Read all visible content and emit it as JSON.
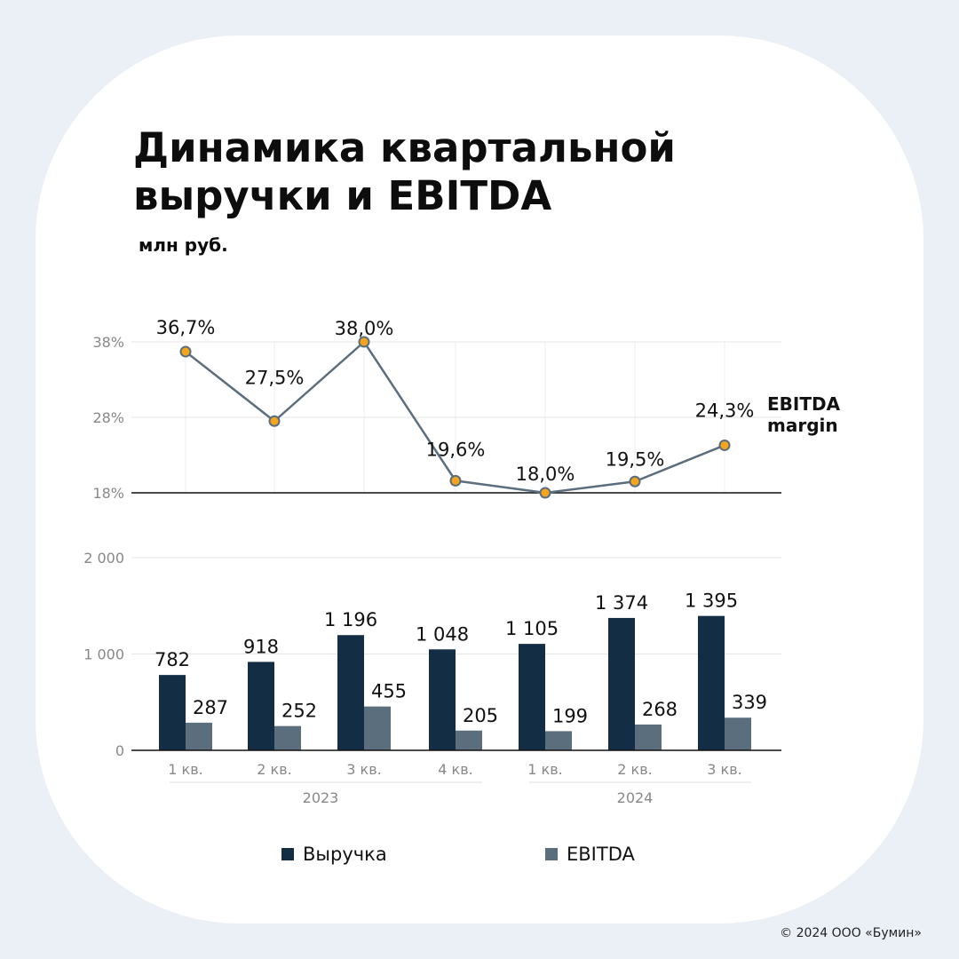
{
  "title": "Динамика квартальной выручки и EBITDA",
  "subtitle": "млн руб.",
  "copyright": "© 2024 ООО «Бумин»",
  "colors": {
    "revenue": "#132d45",
    "ebitda": "#5b6e7e",
    "margin_line": "#5b6e7e",
    "margin_marker": "#f5a51b",
    "background": "#ebf0f7",
    "card": "#ffffff"
  },
  "legend": {
    "revenue": "Выручка",
    "ebitda": "EBITDA"
  },
  "chart_data": [
    {
      "type": "line",
      "series_label": "EBITDA margin",
      "categories": [
        "1 кв. 2023",
        "2 кв. 2023",
        "3 кв. 2023",
        "4 кв. 2023",
        "1 кв. 2024",
        "2 кв. 2024",
        "3 кв. 2024"
      ],
      "values": [
        36.7,
        27.5,
        38.0,
        19.6,
        18.0,
        19.5,
        24.3
      ],
      "value_labels": [
        "36,7%",
        "27,5%",
        "38,0%",
        "19,6%",
        "18,0%",
        "19,5%",
        "24,3%"
      ],
      "yticks": [
        18,
        28,
        38
      ],
      "ytick_labels": [
        "18%",
        "28%",
        "38%"
      ],
      "ylim": [
        18,
        38
      ],
      "grid": true
    },
    {
      "type": "bar",
      "quarter_labels": [
        "1 кв.",
        "2 кв.",
        "3 кв.",
        "4 кв.",
        "1 кв.",
        "2 кв.",
        "3 кв."
      ],
      "year_groups": [
        {
          "label": "2023",
          "count": 4
        },
        {
          "label": "2024",
          "count": 3
        }
      ],
      "series": [
        {
          "name": "Выручка",
          "values": [
            782,
            918,
            1196,
            1048,
            1105,
            1374,
            1395
          ],
          "labels": [
            "782",
            "918",
            "1 196",
            "1 048",
            "1 105",
            "1 374",
            "1 395"
          ]
        },
        {
          "name": "EBITDA",
          "values": [
            287,
            252,
            455,
            205,
            199,
            268,
            339
          ],
          "labels": [
            "287",
            "252",
            "455",
            "205",
            "199",
            "268",
            "339"
          ]
        }
      ],
      "yticks": [
        0,
        1000,
        2000
      ],
      "ytick_labels": [
        "0",
        "1 000",
        "2 000"
      ],
      "ylim": [
        0,
        2000
      ],
      "grid": true
    }
  ]
}
